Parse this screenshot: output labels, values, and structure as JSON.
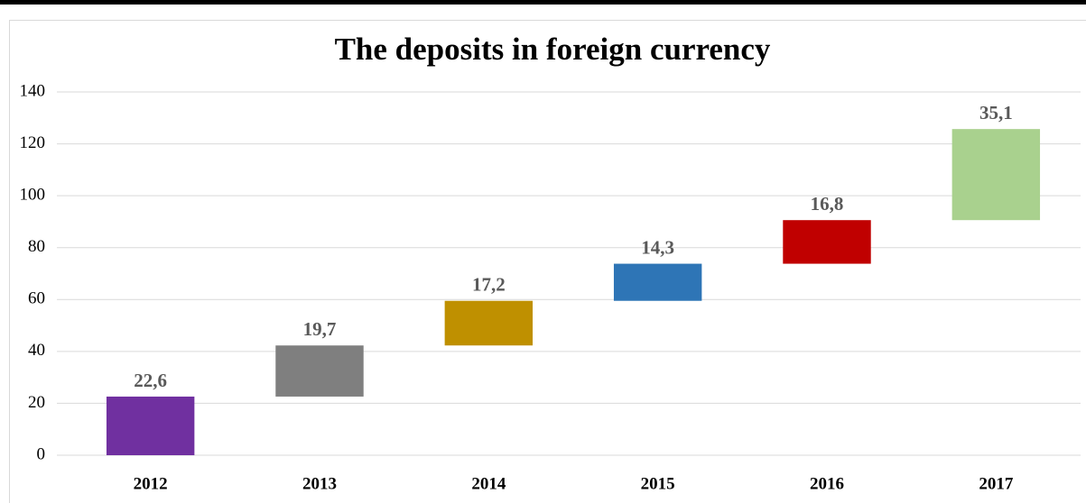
{
  "chart_data": {
    "type": "waterfall",
    "title": "The deposits in foreign currency",
    "categories": [
      "2012",
      "2013",
      "2014",
      "2015",
      "2016",
      "2017"
    ],
    "values": [
      22.6,
      19.7,
      17.2,
      14.3,
      16.8,
      35.1
    ],
    "value_labels": [
      "22,6",
      "19,7",
      "17,2",
      "14,3",
      "16,8",
      "35,1"
    ],
    "colors": [
      "#7030a0",
      "#7f7f7f",
      "#bf9000",
      "#2e75b6",
      "#c00000",
      "#a9d18e"
    ],
    "ylim": [
      0,
      140
    ],
    "yticks": [
      0,
      20,
      40,
      60,
      80,
      100,
      120,
      140
    ],
    "grid": true
  }
}
